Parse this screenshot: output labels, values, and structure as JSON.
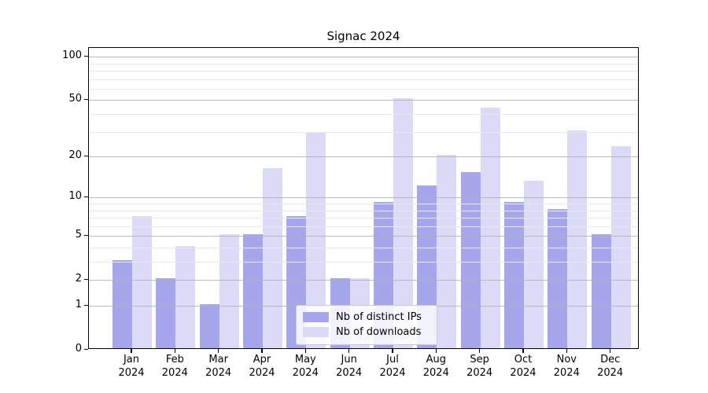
{
  "title": "Signac 2024",
  "chart_data": {
    "type": "bar",
    "title": "Signac 2024",
    "categories": [
      "Jan 2024",
      "Feb 2024",
      "Mar 2024",
      "Apr 2024",
      "May 2024",
      "Jun 2024",
      "Jul 2024",
      "Aug 2024",
      "Sep 2024",
      "Oct 2024",
      "Nov 2024",
      "Dec 2024"
    ],
    "month_labels": [
      "Jan",
      "Feb",
      "Mar",
      "Apr",
      "May",
      "Jun",
      "Jul",
      "Aug",
      "Sep",
      "Oct",
      "Nov",
      "Dec"
    ],
    "year_label": "2024",
    "series": [
      {
        "name": "Nb of distinct IPs",
        "color": "#a6a6ec",
        "values": [
          3,
          2,
          1,
          5,
          7,
          2,
          9,
          12,
          15,
          9,
          8,
          5
        ]
      },
      {
        "name": "Nb of downloads",
        "color": "#dbdbf8",
        "values": [
          7,
          4,
          5,
          16,
          29,
          2,
          50,
          20,
          43,
          13,
          30,
          23
        ]
      }
    ],
    "xlabel": "",
    "ylabel": "",
    "y_scale": "log1p",
    "y_ticks": [
      0,
      1,
      2,
      5,
      10,
      20,
      50,
      100
    ],
    "y_minor_ticks": [
      3,
      4,
      6,
      7,
      8,
      9,
      30,
      40,
      60,
      70,
      80,
      90
    ],
    "ylim": [
      0,
      115
    ],
    "grid": true,
    "legend_position": "lower center"
  },
  "legend": {
    "items": [
      {
        "label": "Nb of distinct IPs",
        "color": "#a6a6ec"
      },
      {
        "label": "Nb of downloads",
        "color": "#dbdbf8"
      }
    ]
  },
  "colors": {
    "distinct_ips": "#a6a6ec",
    "downloads": "#dbdbf8",
    "grid_major": "#b0b0b0",
    "grid_minor": "#e9e9e9",
    "axis": "#000000",
    "background": "#ffffff"
  }
}
